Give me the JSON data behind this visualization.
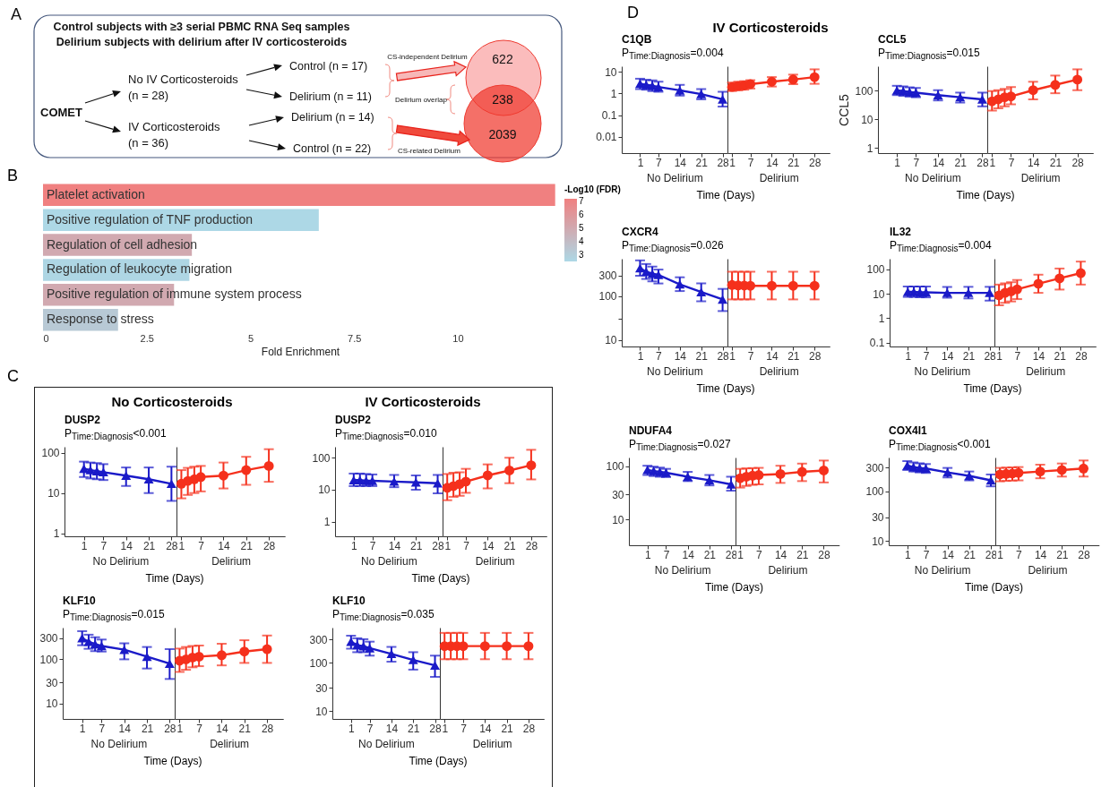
{
  "chart_data": [
    {
      "type": "other",
      "title": "Control subjects with ≥3 serial PBMC RNA Seq samples",
      "subtitle": "Delirium subjects with delirium after IV corticosteroids",
      "annotations": [
        "A",
        "COMET",
        "No IV Corticosteroids",
        "(n = 28)",
        "IV Corticosteroids",
        "(n = 36)",
        "Control (n = 17)",
        "Delirium (n = 11)",
        "Delirium (n = 14)",
        "Control (n = 22)",
        "CS-independent Delirium",
        "Delirium overlap",
        "CS-related Delirium",
        "622",
        "238",
        "2039"
      ]
    },
    {
      "type": "bar",
      "orientation": "horizontal",
      "categories": [
        "Platelet activation",
        "Positive regulation of TNF production",
        "Regulation of cell adhesion",
        "Regulation of leukocyte migration",
        "Positive regulation of immune system process",
        "Response to stress"
      ],
      "values": [
        12.35,
        6.65,
        3.59,
        3.53,
        3.16,
        1.81
      ],
      "cvalues": [
        7.2,
        2.5,
        5.0,
        2.6,
        5.0,
        3.3
      ],
      "clim": [
        2.5,
        7.2
      ],
      "cticks": [
        3,
        4,
        5,
        6,
        7
      ],
      "clabel": "-Log10 (FDR)",
      "xlim": [
        0,
        12.4
      ],
      "xticks": [
        0,
        2.5,
        5,
        7.5,
        10
      ],
      "xlabel": "Fold Enrichment",
      "tick_labels": "x",
      "annotations": [
        "B"
      ]
    },
    {
      "type": "line",
      "title": "DUSP2",
      "subtitle": "P$_{Time:Diagnosis}$<0.001",
      "xlabel": "No Delirium",
      "log": true,
      "xlim": [
        -5,
        29.5
      ],
      "xticks": [
        1,
        7,
        14,
        21,
        28
      ],
      "ylim": [
        0.85,
        140
      ],
      "yticks": [
        1,
        10,
        100
      ],
      "annotations": [
        "Time (Days)",
        "C",
        "No Corticosteroids"
      ],
      "series": [
        {
          "color": "#1a1ac8",
          "marker": "triangle",
          "x": [
            1,
            3,
            5,
            7,
            14,
            21,
            28
          ],
          "values": [
            40,
            37,
            35,
            33,
            27,
            22,
            17
          ],
          "errors": [
            [
              25,
              60
            ],
            [
              23,
              57
            ],
            [
              22,
              55
            ],
            [
              21,
              52
            ],
            [
              15,
              43
            ],
            [
              10,
              43
            ],
            [
              6.4,
              45
            ]
          ]
        }
      ]
    },
    {
      "type": "line",
      "xlabel": "Delirium",
      "log": true,
      "xlim": [
        -0.5,
        33
      ],
      "xticks": [
        1,
        7,
        14,
        21,
        28
      ],
      "ylim": [
        0.85,
        140
      ],
      "tick_labels": "x",
      "series": [
        {
          "color": "#f5301c",
          "marker": "circle",
          "x": [
            1,
            3,
            5,
            7,
            14,
            21,
            28
          ],
          "values": [
            17,
            20,
            22,
            25,
            27,
            37,
            47
          ],
          "errors": [
            [
              7.4,
              37
            ],
            [
              9,
              42
            ],
            [
              10,
              45
            ],
            [
              11,
              47
            ],
            [
              13,
              57
            ],
            [
              16,
              79
            ],
            [
              19,
              122
            ]
          ]
        }
      ]
    },
    {
      "type": "line",
      "title": "DUSP2",
      "subtitle": "P$_{Time:Diagnosis}$=0.010",
      "xlabel": "No Delirium",
      "log": true,
      "xlim": [
        -5,
        29.5
      ],
      "xticks": [
        1,
        7,
        14,
        21,
        28
      ],
      "ylim": [
        0.35,
        220
      ],
      "yticks": [
        1,
        10,
        100
      ],
      "annotations": [
        "Time (Days)",
        "IV Corticosteroids"
      ],
      "series": [
        {
          "color": "#1a1ac8",
          "marker": "triangle",
          "x": [
            1,
            3,
            5,
            7,
            14,
            21,
            28
          ],
          "values": [
            20,
            20,
            19,
            19,
            18,
            17,
            16
          ],
          "errors": [
            [
              13,
              32
            ],
            [
              13,
              32
            ],
            [
              13,
              31
            ],
            [
              13,
              30
            ],
            [
              12,
              29
            ],
            [
              10,
              28
            ],
            [
              7.7,
              29
            ]
          ]
        }
      ]
    },
    {
      "type": "line",
      "xlabel": "Delirium",
      "log": true,
      "xlim": [
        -0.5,
        33
      ],
      "xticks": [
        1,
        7,
        14,
        21,
        28
      ],
      "ylim": [
        0.35,
        220
      ],
      "tick_labels": "x",
      "series": [
        {
          "color": "#f5301c",
          "marker": "circle",
          "x": [
            1,
            3,
            5,
            7,
            14,
            21,
            28
          ],
          "values": [
            11.5,
            13,
            15,
            18,
            28,
            40,
            58
          ],
          "errors": [
            [
              4.7,
              31
            ],
            [
              6,
              34
            ],
            [
              6.5,
              35
            ],
            [
              8,
              45
            ],
            [
              11,
              62
            ],
            [
              16,
              100
            ],
            [
              21,
              177
            ]
          ]
        }
      ]
    },
    {
      "type": "line",
      "title": "KLF10",
      "subtitle": "P$_{Time:Diagnosis}$=0.015",
      "xlabel": "No Delirium",
      "log": true,
      "xlim": [
        -5,
        29.5
      ],
      "xticks": [
        1,
        7,
        14,
        21,
        28
      ],
      "ylim": [
        4.5,
        520
      ],
      "yticks": [
        10,
        30,
        100,
        300
      ],
      "annotations": [
        "Time (Days)"
      ],
      "series": [
        {
          "color": "#1a1ac8",
          "marker": "triangle",
          "x": [
            1,
            3,
            5,
            7,
            14,
            21,
            28
          ],
          "values": [
            300,
            250,
            220,
            200,
            165,
            115,
            80
          ],
          "errors": [
            [
              208,
              433
            ],
            [
              173,
              360
            ],
            [
              153,
              317
            ],
            [
              150,
              280
            ],
            [
              100,
              230
            ],
            [
              62,
              190
            ],
            [
              36,
              170
            ]
          ]
        }
      ]
    },
    {
      "type": "line",
      "xlabel": "Delirium",
      "log": true,
      "xlim": [
        -0.5,
        33
      ],
      "xticks": [
        1,
        7,
        14,
        21,
        28
      ],
      "ylim": [
        4.5,
        520
      ],
      "tick_labels": "x",
      "series": [
        {
          "color": "#f5301c",
          "marker": "circle",
          "x": [
            1,
            3,
            5,
            7,
            14,
            21,
            28
          ],
          "values": [
            93,
            100,
            110,
            115,
            124,
            150,
            170
          ],
          "errors": [
            [
              52,
              175
            ],
            [
              58,
              190
            ],
            [
              66,
              200
            ],
            [
              70,
              205
            ],
            [
              73,
              225
            ],
            [
              83,
              270
            ],
            [
              83,
              345
            ]
          ]
        }
      ]
    },
    {
      "type": "line",
      "title": "KLF10",
      "subtitle": "P$_{Time:Diagnosis}$=0.035",
      "xlabel": "No Delirium",
      "log": true,
      "xlim": [
        -5,
        29.5
      ],
      "xticks": [
        1,
        7,
        14,
        21,
        28
      ],
      "ylim": [
        6.9,
        530
      ],
      "yticks": [
        10,
        30,
        100,
        300
      ],
      "annotations": [
        "Time (Days)"
      ],
      "series": [
        {
          "color": "#1a1ac8",
          "marker": "triangle",
          "x": [
            1,
            3,
            5,
            7,
            14,
            21,
            28
          ],
          "values": [
            272,
            230,
            219,
            200,
            152,
            114,
            88
          ],
          "errors": [
            [
              195,
              361
            ],
            [
              165,
              320
            ],
            [
              165,
              306
            ],
            [
              140,
              272
            ],
            [
              105,
              212
            ],
            [
              72,
              165
            ],
            [
              51,
              140
            ]
          ]
        }
      ]
    },
    {
      "type": "line",
      "xlabel": "Delirium",
      "log": true,
      "xlim": [
        -0.5,
        33
      ],
      "xticks": [
        1,
        7,
        14,
        21,
        28
      ],
      "ylim": [
        6.9,
        530
      ],
      "tick_labels": "x",
      "series": [
        {
          "color": "#f5301c",
          "marker": "circle",
          "x": [
            1,
            3,
            5,
            7,
            14,
            21,
            28
          ],
          "values": [
            220,
            220,
            220,
            220,
            220,
            220,
            220
          ],
          "errors": [
            [
              118,
              413
            ],
            [
              118,
              413
            ],
            [
              118,
              413
            ],
            [
              118,
              413
            ],
            [
              118,
              413
            ],
            [
              118,
              413
            ],
            [
              118,
              413
            ]
          ]
        }
      ]
    },
    {
      "type": "line",
      "title": "C1QB",
      "subtitle": "P$_{Time:Diagnosis}$=0.004",
      "xlabel": "No Delirium",
      "log": true,
      "xlim": [
        -5,
        29.5
      ],
      "xticks": [
        1,
        7,
        14,
        21,
        28
      ],
      "ylim": [
        0.0018,
        18
      ],
      "yticks": [
        0.01,
        0.1,
        1,
        10
      ],
      "annotations": [
        "Time (Days)",
        "D",
        "IV Corticosteroids"
      ],
      "series": [
        {
          "color": "#1a1ac8",
          "marker": "triangle",
          "x": [
            1,
            3,
            5,
            7,
            14,
            21,
            28
          ],
          "values": [
            2.8,
            2.5,
            2.3,
            2.0,
            1.4,
            0.94,
            0.54
          ],
          "errors": [
            [
              1.6,
              4.8
            ],
            [
              1.5,
              4.3
            ],
            [
              1.3,
              4
            ],
            [
              1.2,
              3.5
            ],
            [
              0.8,
              2.5
            ],
            [
              0.54,
              1.6
            ],
            [
              0.25,
              1.2
            ]
          ]
        }
      ]
    },
    {
      "type": "line",
      "xlabel": "Delirium",
      "log": true,
      "xlim": [
        -0.5,
        33
      ],
      "xticks": [
        1,
        7,
        14,
        21,
        28
      ],
      "ylim": [
        0.0018,
        18
      ],
      "tick_labels": "x",
      "series": [
        {
          "color": "#f5301c",
          "marker": "circle",
          "x": [
            1,
            3,
            5,
            7,
            14,
            21,
            28
          ],
          "values": [
            2.0,
            2.2,
            2.35,
            2.7,
            3.5,
            4.4,
            5.7
          ],
          "errors": [
            [
              1.3,
              3.2
            ],
            [
              1.4,
              3.5
            ],
            [
              1.5,
              3.7
            ],
            [
              1.7,
              4.1
            ],
            [
              2.1,
              5.7
            ],
            [
              2.7,
              7.4
            ],
            [
              2.8,
              13
            ]
          ]
        }
      ]
    },
    {
      "type": "line",
      "title": "CCL5",
      "subtitle": "P$_{Time:Diagnosis}$=0.015",
      "xlabel": "No Delirium",
      "ylabel": "CCL5",
      "log": true,
      "xlim": [
        -5,
        29.5
      ],
      "xticks": [
        1,
        7,
        14,
        21,
        28
      ],
      "ylim": [
        0.67,
        690
      ],
      "yticks": [
        1,
        10,
        100
      ],
      "annotations": [
        "Time (Days)"
      ],
      "series": [
        {
          "color": "#1a1ac8",
          "marker": "triangle",
          "x": [
            1,
            3,
            5,
            7,
            14,
            21,
            28
          ],
          "values": [
            100,
            95,
            88,
            84,
            69,
            58,
            49
          ],
          "errors": [
            [
              69,
              145
            ],
            [
              65,
              138
            ],
            [
              61,
              128
            ],
            [
              58,
              122
            ],
            [
              45,
              102
            ],
            [
              38,
              84
            ],
            [
              28,
              84
            ]
          ]
        }
      ]
    },
    {
      "type": "line",
      "xlabel": "Delirium",
      "log": true,
      "xlim": [
        -0.5,
        33
      ],
      "xticks": [
        1,
        7,
        14,
        21,
        28
      ],
      "ylim": [
        0.67,
        690
      ],
      "tick_labels": "x",
      "series": [
        {
          "color": "#f5301c",
          "marker": "circle",
          "x": [
            1,
            3,
            5,
            7,
            14,
            21,
            28
          ],
          "values": [
            42,
            49,
            58,
            62,
            102,
            156,
            238
          ],
          "errors": [
            [
              20,
              95
            ],
            [
              24,
              102
            ],
            [
              28,
              113
            ],
            [
              33,
              131
            ],
            [
              49,
              200
            ],
            [
              80,
              328
            ],
            [
              102,
              540
            ]
          ]
        }
      ]
    },
    {
      "type": "line",
      "title": "CXCR4",
      "subtitle": "P$_{Time:Diagnosis}$=0.026",
      "xlabel": "No Delirium",
      "log": true,
      "xlim": [
        -5,
        29.5
      ],
      "xticks": [
        1,
        7,
        14,
        21,
        28
      ],
      "ylim": [
        7.1,
        725
      ],
      "yticks": [
        10,
        {
          "value": 30,
          "label": null
        },
        100,
        300
      ],
      "annotations": [
        "Time (Days)"
      ],
      "series": [
        {
          "color": "#1a1ac8",
          "marker": "triangle",
          "x": [
            1,
            3,
            5,
            7,
            14,
            21,
            28
          ],
          "values": [
            443,
            366,
            330,
            310,
            188,
            125,
            85
          ],
          "errors": [
            [
              296,
              665
            ],
            [
              250,
              550
            ],
            [
              220,
              480
            ],
            [
              197,
              410
            ],
            [
              132,
              273
            ],
            [
              77,
              198
            ],
            [
              46,
              148
            ]
          ]
        }
      ]
    },
    {
      "type": "line",
      "xlabel": "Delirium",
      "log": true,
      "xlim": [
        -0.5,
        33
      ],
      "xticks": [
        1,
        7,
        14,
        21,
        28
      ],
      "ylim": [
        7.1,
        725
      ],
      "tick_labels": "x",
      "series": [
        {
          "color": "#f5301c",
          "marker": "circle",
          "x": [
            1,
            3,
            5,
            7,
            14,
            21,
            28
          ],
          "values": [
            182,
            178,
            176,
            174,
            174,
            174,
            174
          ],
          "errors": [
            [
              85,
              366
            ],
            [
              85,
              366
            ],
            [
              85,
              366
            ],
            [
              85,
              366
            ],
            [
              85,
              366
            ],
            [
              85,
              366
            ],
            [
              85,
              366
            ]
          ]
        }
      ]
    },
    {
      "type": "line",
      "title": "IL32",
      "subtitle": "P$_{Time:Diagnosis}$=0.004",
      "xlabel": "No Delirium",
      "log": true,
      "xlim": [
        -5,
        29.5
      ],
      "xticks": [
        1,
        7,
        14,
        21,
        28
      ],
      "ylim": [
        0.07,
        274
      ],
      "yticks": [
        0.1,
        1,
        10,
        100
      ],
      "annotations": [
        "Time (Days)"
      ],
      "series": [
        {
          "color": "#1a1ac8",
          "marker": "triangle",
          "x": [
            1,
            3,
            5,
            7,
            14,
            21,
            28
          ],
          "values": [
            12,
            12,
            11.5,
            11.5,
            11,
            11,
            11
          ],
          "errors": [
            [
              7.5,
              20
            ],
            [
              7.5,
              20
            ],
            [
              7.2,
              20
            ],
            [
              7.2,
              20
            ],
            [
              7,
              19
            ],
            [
              6.5,
              19.4
            ],
            [
              5.3,
              19.4
            ]
          ]
        }
      ]
    },
    {
      "type": "line",
      "xlabel": "Delirium",
      "log": true,
      "xlim": [
        -0.5,
        33
      ],
      "xticks": [
        1,
        7,
        14,
        21,
        28
      ],
      "ylim": [
        0.07,
        274
      ],
      "tick_labels": "x",
      "series": [
        {
          "color": "#f5301c",
          "marker": "circle",
          "x": [
            1,
            3,
            5,
            7,
            14,
            21,
            28
          ],
          "values": [
            8.7,
            11,
            12.6,
            15.4,
            26,
            43,
            71
          ],
          "errors": [
            [
              3.4,
              24
            ],
            [
              4.3,
              27
            ],
            [
              4.9,
              30
            ],
            [
              6.1,
              37
            ],
            [
              11,
              61
            ],
            [
              15,
              109
            ],
            [
              24,
              210
            ]
          ]
        }
      ]
    },
    {
      "type": "line",
      "title": "NDUFA4",
      "subtitle": "P$_{Time:Diagnosis}$=0.027",
      "xlabel": "No Delirium",
      "log": true,
      "xlim": [
        -5,
        29.5
      ],
      "xticks": [
        1,
        7,
        14,
        21,
        28
      ],
      "ylim": [
        3.3,
        147
      ],
      "yticks": [
        10,
        30,
        100
      ],
      "annotations": [
        "Time (Days)"
      ],
      "series": [
        {
          "color": "#1a1ac8",
          "marker": "triangle",
          "x": [
            1,
            3,
            5,
            7,
            14,
            21,
            28
          ],
          "values": [
            86,
            82,
            79,
            76,
            64,
            55,
            46
          ],
          "errors": [
            [
              69,
              103
            ],
            [
              66,
              99
            ],
            [
              64,
              95
            ],
            [
              63,
              90
            ],
            [
              53,
              79
            ],
            [
              44,
              69
            ],
            [
              35,
              64
            ]
          ]
        }
      ]
    },
    {
      "type": "line",
      "xlabel": "Delirium",
      "log": true,
      "xlim": [
        -0.5,
        33
      ],
      "xticks": [
        1,
        7,
        14,
        21,
        28
      ],
      "ylim": [
        3.3,
        147
      ],
      "tick_labels": "x",
      "series": [
        {
          "color": "#f5301c",
          "marker": "circle",
          "x": [
            1,
            3,
            5,
            7,
            14,
            21,
            28
          ],
          "values": [
            60,
            64,
            67,
            69,
            72,
            79,
            84
          ],
          "errors": [
            [
              40,
              90
            ],
            [
              43,
              92
            ],
            [
              45,
              93
            ],
            [
              46,
              94
            ],
            [
              49,
              103
            ],
            [
              53,
              113
            ],
            [
              50,
              129
            ]
          ]
        }
      ]
    },
    {
      "type": "line",
      "title": "COX4I1",
      "subtitle": "P$_{Time:Diagnosis}$<0.001",
      "xlabel": "No Delirium",
      "log": true,
      "xlim": [
        -5,
        29.5
      ],
      "xticks": [
        1,
        7,
        14,
        21,
        28
      ],
      "ylim": [
        8.3,
        477
      ],
      "yticks": [
        10,
        30,
        100,
        300
      ],
      "annotations": [
        "Time (Days)"
      ],
      "series": [
        {
          "color": "#1a1ac8",
          "marker": "triangle",
          "x": [
            1,
            3,
            5,
            7,
            14,
            21,
            28
          ],
          "values": [
            329,
            307,
            295,
            287,
            240,
            204,
            166
          ],
          "errors": [
            [
              268,
              404
            ],
            [
              250,
              380
            ],
            [
              240,
              365
            ],
            [
              234,
              353
            ],
            [
              190,
              295
            ],
            [
              166,
              250
            ],
            [
              126,
              218
            ]
          ]
        }
      ]
    },
    {
      "type": "line",
      "xlabel": "Delirium",
      "log": true,
      "xlim": [
        -0.5,
        33
      ],
      "xticks": [
        1,
        7,
        14,
        21,
        28
      ],
      "ylim": [
        8.3,
        477
      ],
      "tick_labels": "x",
      "series": [
        {
          "color": "#f5301c",
          "marker": "circle",
          "x": [
            1,
            3,
            5,
            7,
            14,
            21,
            28
          ],
          "values": [
            218,
            224,
            228,
            234,
            250,
            268,
            287
          ],
          "errors": [
            [
              159,
              295
            ],
            [
              162,
              300
            ],
            [
              164,
              303
            ],
            [
              166,
              307
            ],
            [
              183,
              343
            ],
            [
              198,
              362
            ],
            [
              198,
              416
            ]
          ]
        }
      ]
    }
  ]
}
